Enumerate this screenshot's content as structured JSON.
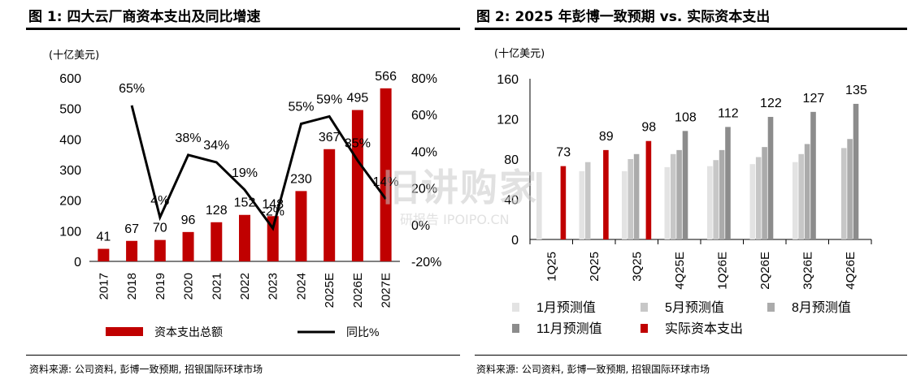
{
  "chart_data": [
    {
      "type": "bar",
      "title": "图 1: 四大云厂商资本支出及同比增速",
      "unit_label": "(十亿美元)",
      "categories": [
        "2017",
        "2018",
        "2019",
        "2020",
        "2021",
        "2022",
        "2023",
        "2024",
        "2025E",
        "2026E",
        "2027E"
      ],
      "series": [
        {
          "name": "资本支出总额",
          "kind": "bar",
          "axis": "left",
          "color": "#C00000",
          "values": [
            41,
            67,
            70,
            96,
            128,
            152,
            148,
            230,
            367,
            495,
            566
          ]
        },
        {
          "name": "同比%",
          "kind": "line",
          "axis": "right",
          "color": "#000000",
          "values": [
            null,
            65,
            4,
            38,
            34,
            19,
            -2,
            55,
            59,
            35,
            14
          ],
          "labels": [
            "",
            "65%",
            "4%",
            "38%",
            "34%",
            "19%",
            "-2%",
            "55%",
            "59%",
            "35%",
            "14%"
          ]
        }
      ],
      "ylim": [
        0,
        600
      ],
      "yticks": [
        "0",
        "100",
        "200",
        "300",
        "400",
        "500",
        "600"
      ],
      "y2lim": [
        -20,
        80
      ],
      "y2ticks": [
        "-20%",
        "0%",
        "20%",
        "40%",
        "60%",
        "80%"
      ],
      "source": "资料来源: 公司资料, 彭博一致预期, 招银国际环球市场"
    },
    {
      "type": "bar",
      "title": "图 2: 2025 年彭博一致预期 vs. 实际资本支出",
      "unit_label": "(十亿美元)",
      "categories": [
        "1Q25",
        "2Q25",
        "3Q25",
        "4Q25E",
        "1Q26E",
        "2Q26E",
        "3Q26E",
        "4Q26E"
      ],
      "series": [
        {
          "name": "1月预测值",
          "color": "#E3E3E3",
          "values": [
            67,
            68,
            68,
            72,
            73,
            75,
            77,
            null
          ]
        },
        {
          "name": "5月预测值",
          "color": "#C7C7C7",
          "values": [
            null,
            77,
            80,
            85,
            79,
            82,
            85,
            91
          ]
        },
        {
          "name": "8月预测值",
          "color": "#ABABAB",
          "values": [
            null,
            null,
            85,
            89,
            89,
            92,
            95,
            100
          ]
        },
        {
          "name": "11月预测值",
          "color": "#8C8C8C",
          "values": [
            null,
            null,
            null,
            108,
            112,
            122,
            127,
            135
          ]
        },
        {
          "name": "实际资本支出",
          "color": "#C00000",
          "values": [
            73,
            89,
            98,
            null,
            null,
            null,
            null,
            null
          ]
        }
      ],
      "value_labels": [
        "73",
        "89",
        "98",
        "108",
        "112",
        "122",
        "127",
        "135"
      ],
      "ylim": [
        0,
        160
      ],
      "yticks": [
        "0",
        "40",
        "80",
        "120",
        "160"
      ],
      "source": "资料来源: 公司资料, 彭博一致预期, 招银国际环球市场"
    }
  ],
  "watermark": {
    "line1": "旧讲购家",
    "line2": "研报告 IPOIPO.CN"
  }
}
